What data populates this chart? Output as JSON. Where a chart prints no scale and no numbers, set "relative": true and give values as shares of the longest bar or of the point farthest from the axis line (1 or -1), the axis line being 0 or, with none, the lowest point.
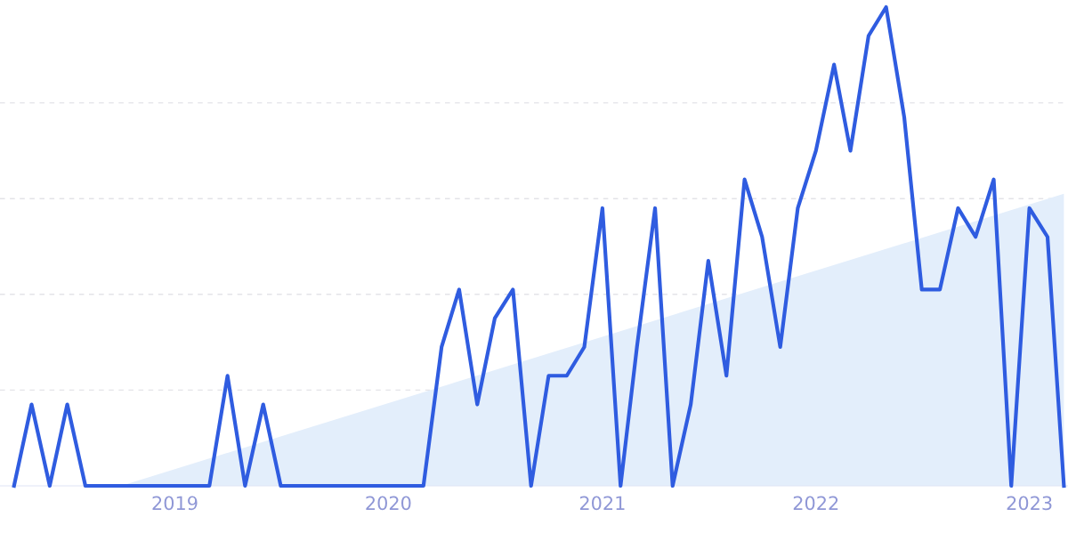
{
  "chart_data": {
    "type": "line",
    "relative": true,
    "x": [
      "2018-04",
      "2018-05",
      "2018-06",
      "2018-07",
      "2018-08",
      "2018-09",
      "2018-10",
      "2018-11",
      "2018-12",
      "2019-01",
      "2019-02",
      "2019-03",
      "2019-04",
      "2019-05",
      "2019-06",
      "2019-07",
      "2019-08",
      "2019-09",
      "2019-10",
      "2019-11",
      "2019-12",
      "2020-01",
      "2020-02",
      "2020-03",
      "2020-04",
      "2020-05",
      "2020-06",
      "2020-07",
      "2020-08",
      "2020-09",
      "2020-10",
      "2020-11",
      "2020-12",
      "2021-01",
      "2021-02",
      "2021-03",
      "2021-04",
      "2021-05",
      "2021-06",
      "2021-07",
      "2021-08",
      "2021-09",
      "2021-10",
      "2021-11",
      "2021-12",
      "2022-01",
      "2022-02",
      "2022-03",
      "2022-04",
      "2022-05",
      "2022-06",
      "2022-07",
      "2022-08",
      "2022-09",
      "2022-10",
      "2022-11",
      "2022-12",
      "2023-01",
      "2023-02",
      "2023-03"
    ],
    "series": [
      {
        "type": "area",
        "color": "#e3eefb",
        "x": [
          "2018-10",
          "2023-03"
        ],
        "values": [
          0,
          0.61
        ]
      },
      {
        "color": "#2f5ce0",
        "values": [
          0,
          0.17,
          0,
          0.17,
          0,
          0,
          0,
          0,
          0,
          0,
          0,
          0,
          0.23,
          0,
          0.17,
          0,
          0,
          0,
          0,
          0,
          0,
          0,
          0,
          0,
          0.29,
          0.41,
          0.17,
          0.35,
          0.41,
          0,
          0.23,
          0.23,
          0.29,
          0.58,
          0,
          0.29,
          0.58,
          0,
          0.17,
          0.47,
          0.23,
          0.64,
          0.52,
          0.29,
          0.58,
          0.7,
          0.88,
          0.7,
          0.94,
          1,
          0.77,
          0.41,
          0.41,
          0.58,
          0.52,
          0.64,
          0,
          0.58,
          0.52,
          0
        ]
      }
    ],
    "xlim": [
      "2018-03-08",
      "2023-03-08"
    ],
    "xticks": [
      {
        "value": "2019-01",
        "label": "2019"
      },
      {
        "value": "2020-01",
        "label": "2020"
      },
      {
        "value": "2021-01",
        "label": "2021"
      },
      {
        "value": "2022-01",
        "label": "2022"
      },
      {
        "value": "2023-01",
        "label": "2023"
      }
    ],
    "grid": "y",
    "legend": false,
    "marker": "none",
    "line_style": "solid"
  }
}
